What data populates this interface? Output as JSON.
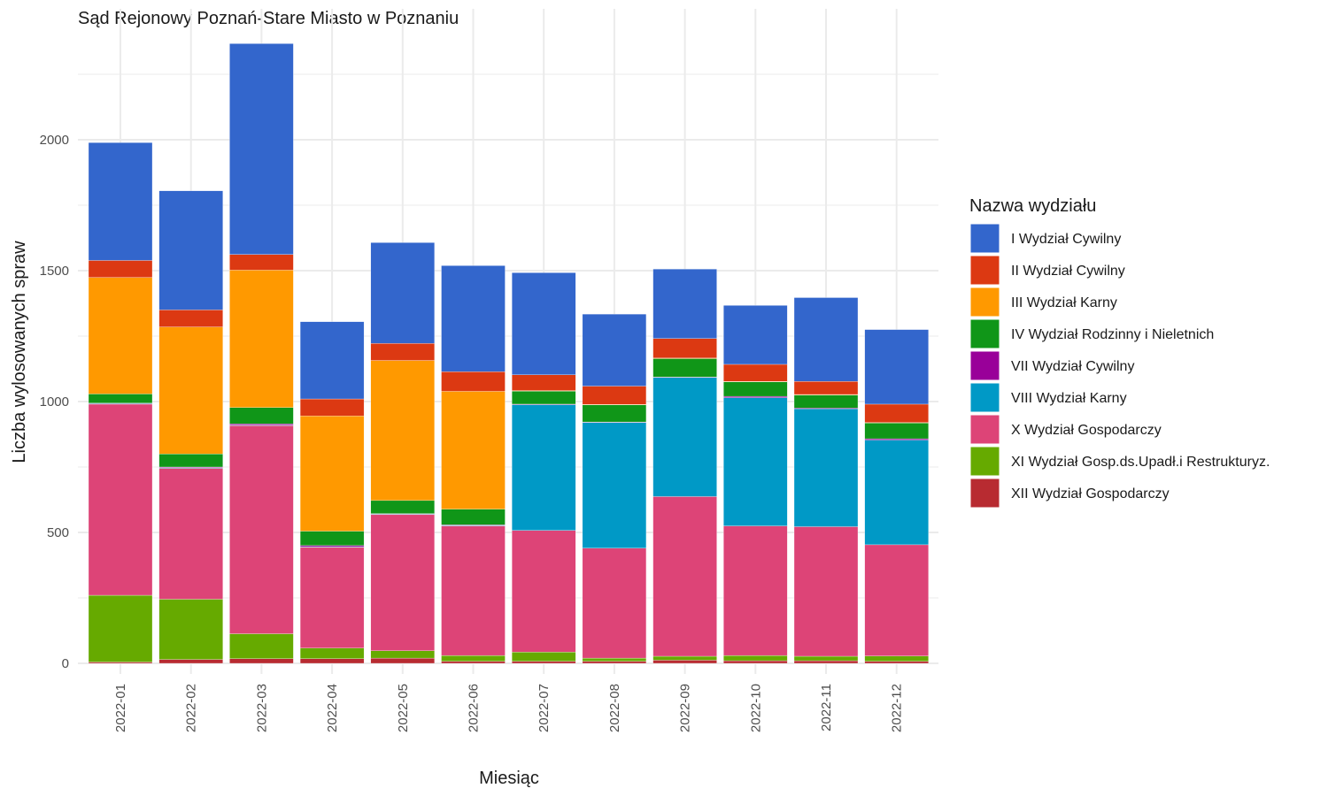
{
  "chart_data": {
    "type": "bar",
    "stacked": true,
    "title": "Sąd Rejonowy Poznań-Stare Miasto w Poznaniu",
    "xlabel": "Miesiąc",
    "ylabel": "Liczba wylosowanych spraw",
    "ylim": [
      0,
      2400
    ],
    "yticks": [
      0,
      500,
      1000,
      1500,
      2000
    ],
    "grid": true,
    "legend_title": "Nazwa wydziału",
    "legend_position": "right",
    "categories": [
      "2022-01",
      "2022-02",
      "2022-03",
      "2022-04",
      "2022-05",
      "2022-06",
      "2022-07",
      "2022-08",
      "2022-09",
      "2022-10",
      "2022-11",
      "2022-12"
    ],
    "series": [
      {
        "name": "XII Wydział Gospodarczy",
        "color": "#B82B31",
        "values": [
          5,
          15,
          18,
          18,
          20,
          8,
          8,
          8,
          12,
          10,
          10,
          8
        ]
      },
      {
        "name": "XI Wydział Gosp.ds.Upadł.i Restrukturyz.",
        "color": "#66AA00",
        "values": [
          255,
          230,
          95,
          40,
          28,
          22,
          35,
          12,
          15,
          20,
          17,
          20
        ]
      },
      {
        "name": "X Wydział Gospodarczy",
        "color": "#DD4477",
        "values": [
          730,
          500,
          795,
          385,
          520,
          495,
          465,
          420,
          610,
          495,
          495,
          425
        ]
      },
      {
        "name": "VIII Wydział Karny",
        "color": "#0099C6",
        "values": [
          2,
          2,
          2,
          2,
          2,
          2,
          480,
          480,
          455,
          490,
          450,
          400
        ]
      },
      {
        "name": "VII Wydział Cywilny",
        "color": "#990099",
        "values": [
          2,
          3,
          5,
          5,
          2,
          2,
          2,
          2,
          2,
          5,
          3,
          5
        ]
      },
      {
        "name": "IV Wydział Rodzinny i Nieletnich",
        "color": "#109618",
        "values": [
          35,
          50,
          62,
          55,
          50,
          60,
          50,
          65,
          70,
          55,
          50,
          60
        ]
      },
      {
        "name": "III Wydział Karny",
        "color": "#FF9900",
        "values": [
          445,
          485,
          525,
          440,
          535,
          450,
          2,
          2,
          2,
          2,
          2,
          2
        ]
      },
      {
        "name": "II Wydział Cywilny",
        "color": "#DC3912",
        "values": [
          65,
          65,
          60,
          65,
          65,
          75,
          60,
          70,
          75,
          65,
          50,
          70
        ]
      },
      {
        "name": "I Wydział Cywilny",
        "color": "#3366CC",
        "values": [
          450,
          455,
          805,
          295,
          385,
          405,
          390,
          275,
          265,
          225,
          320,
          285
        ]
      }
    ],
    "legend_order": [
      "I Wydział Cywilny",
      "II Wydział Cywilny",
      "III Wydział Karny",
      "IV Wydział Rodzinny i Nieletnich",
      "VII Wydział Cywilny",
      "VIII Wydział Karny",
      "X Wydział Gospodarczy",
      "XI Wydział Gosp.ds.Upadł.i Restrukturyz.",
      "XII Wydział Gospodarczy"
    ]
  }
}
